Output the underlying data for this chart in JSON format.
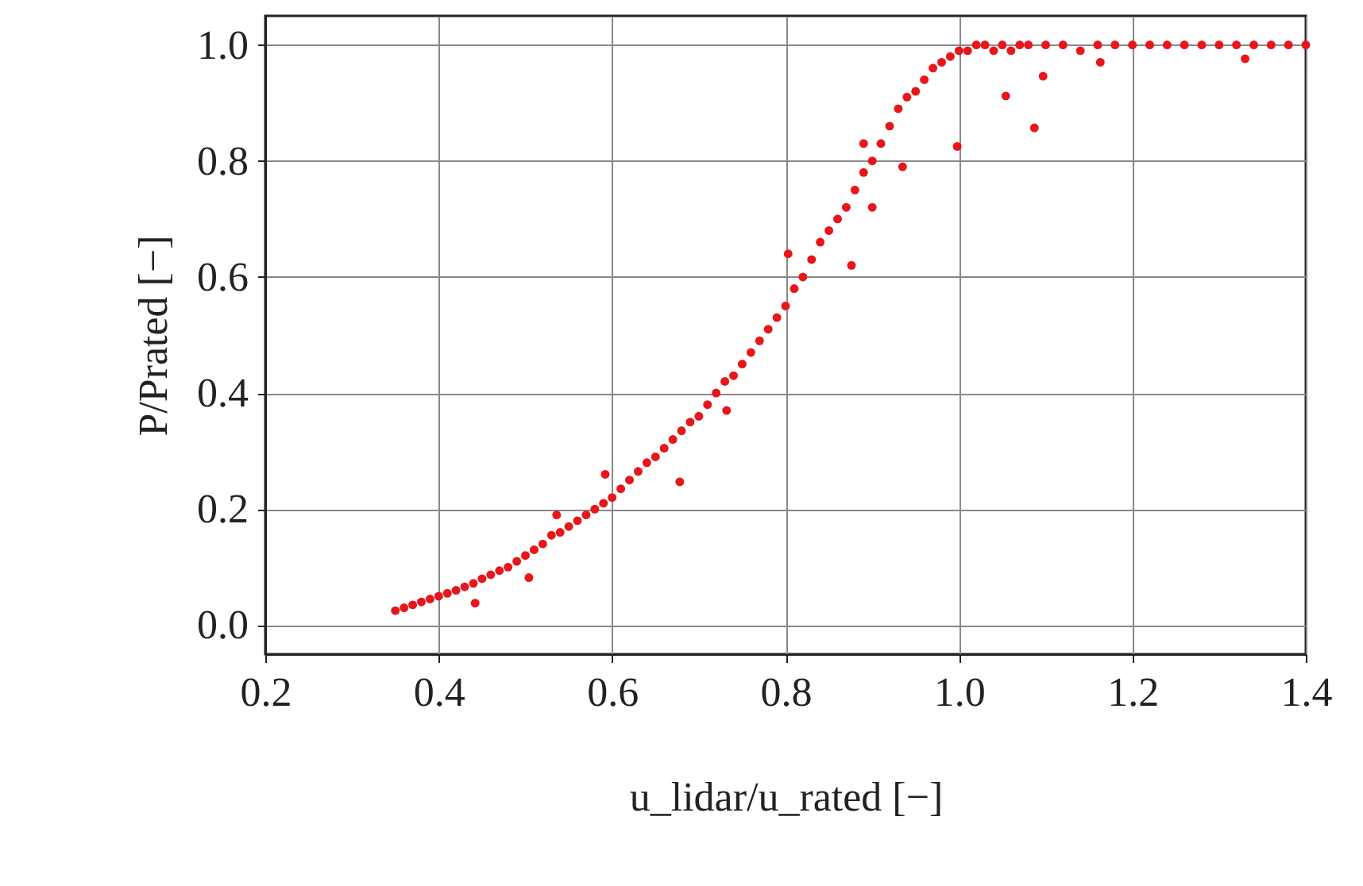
{
  "chart_data": {
    "type": "scatter",
    "xlabel": "u_lidar/u_rated [−]",
    "ylabel": "P/Prated [−]",
    "x": [
      0.35,
      0.36,
      0.37,
      0.38,
      0.39,
      0.4,
      0.41,
      0.42,
      0.43,
      0.44,
      0.442,
      0.45,
      0.46,
      0.47,
      0.48,
      0.49,
      0.5,
      0.504,
      0.51,
      0.52,
      0.53,
      0.536,
      0.54,
      0.55,
      0.56,
      0.57,
      0.58,
      0.59,
      0.592,
      0.6,
      0.61,
      0.62,
      0.63,
      0.64,
      0.65,
      0.66,
      0.67,
      0.678,
      0.68,
      0.69,
      0.7,
      0.71,
      0.72,
      0.73,
      0.732,
      0.74,
      0.75,
      0.76,
      0.77,
      0.78,
      0.79,
      0.8,
      0.803,
      0.81,
      0.82,
      0.83,
      0.84,
      0.85,
      0.86,
      0.87,
      0.876,
      0.88,
      0.89,
      0.89,
      0.9,
      0.9,
      0.91,
      0.92,
      0.93,
      0.935,
      0.94,
      0.95,
      0.96,
      0.97,
      0.98,
      0.99,
      0.998,
      1.0,
      1.01,
      1.02,
      1.03,
      1.04,
      1.05,
      1.054,
      1.06,
      1.07,
      1.08,
      1.087,
      1.097,
      1.1,
      1.12,
      1.14,
      1.163,
      1.16,
      1.18,
      1.2,
      1.22,
      1.24,
      1.26,
      1.28,
      1.3,
      1.33,
      1.32,
      1.34,
      1.36,
      1.38,
      1.4
    ],
    "series": [
      {
        "color": "#e8161b",
        "values": [
          0.025,
          0.03,
          0.035,
          0.04,
          0.045,
          0.05,
          0.055,
          0.06,
          0.066,
          0.072,
          0.038,
          0.08,
          0.087,
          0.094,
          0.1,
          0.11,
          0.12,
          0.082,
          0.13,
          0.14,
          0.155,
          0.19,
          0.16,
          0.17,
          0.18,
          0.19,
          0.2,
          0.21,
          0.26,
          0.22,
          0.235,
          0.25,
          0.265,
          0.28,
          0.29,
          0.305,
          0.32,
          0.247,
          0.335,
          0.35,
          0.36,
          0.38,
          0.4,
          0.42,
          0.37,
          0.43,
          0.45,
          0.47,
          0.49,
          0.51,
          0.53,
          0.55,
          0.64,
          0.58,
          0.6,
          0.63,
          0.66,
          0.68,
          0.7,
          0.72,
          0.62,
          0.75,
          0.78,
          0.83,
          0.8,
          0.72,
          0.83,
          0.86,
          0.89,
          0.79,
          0.91,
          0.92,
          0.94,
          0.96,
          0.97,
          0.98,
          0.825,
          0.99,
          0.99,
          1.0,
          1.0,
          0.99,
          1.0,
          0.912,
          0.99,
          1.0,
          1.0,
          0.857,
          0.946,
          1.0,
          1.0,
          0.99,
          0.97,
          1.0,
          1.0,
          1.0,
          1.0,
          1.0,
          1.0,
          1.0,
          1.0,
          0.976,
          1.0,
          1.0,
          1.0,
          1.0,
          1.0
        ]
      }
    ],
    "xlim": [
      0.2,
      1.4
    ],
    "ylim": [
      -0.05,
      1.05
    ],
    "xticks": [
      0.2,
      0.4,
      0.6,
      0.8,
      {
        "value": 1,
        "label": "1.0"
      },
      1.2,
      1.4
    ],
    "yticks": [
      {
        "value": 0,
        "label": "0.0"
      },
      0.2,
      0.4,
      0.6,
      0.8,
      {
        "value": 1,
        "label": "1.0"
      }
    ],
    "grid": true,
    "marker": "circle"
  }
}
